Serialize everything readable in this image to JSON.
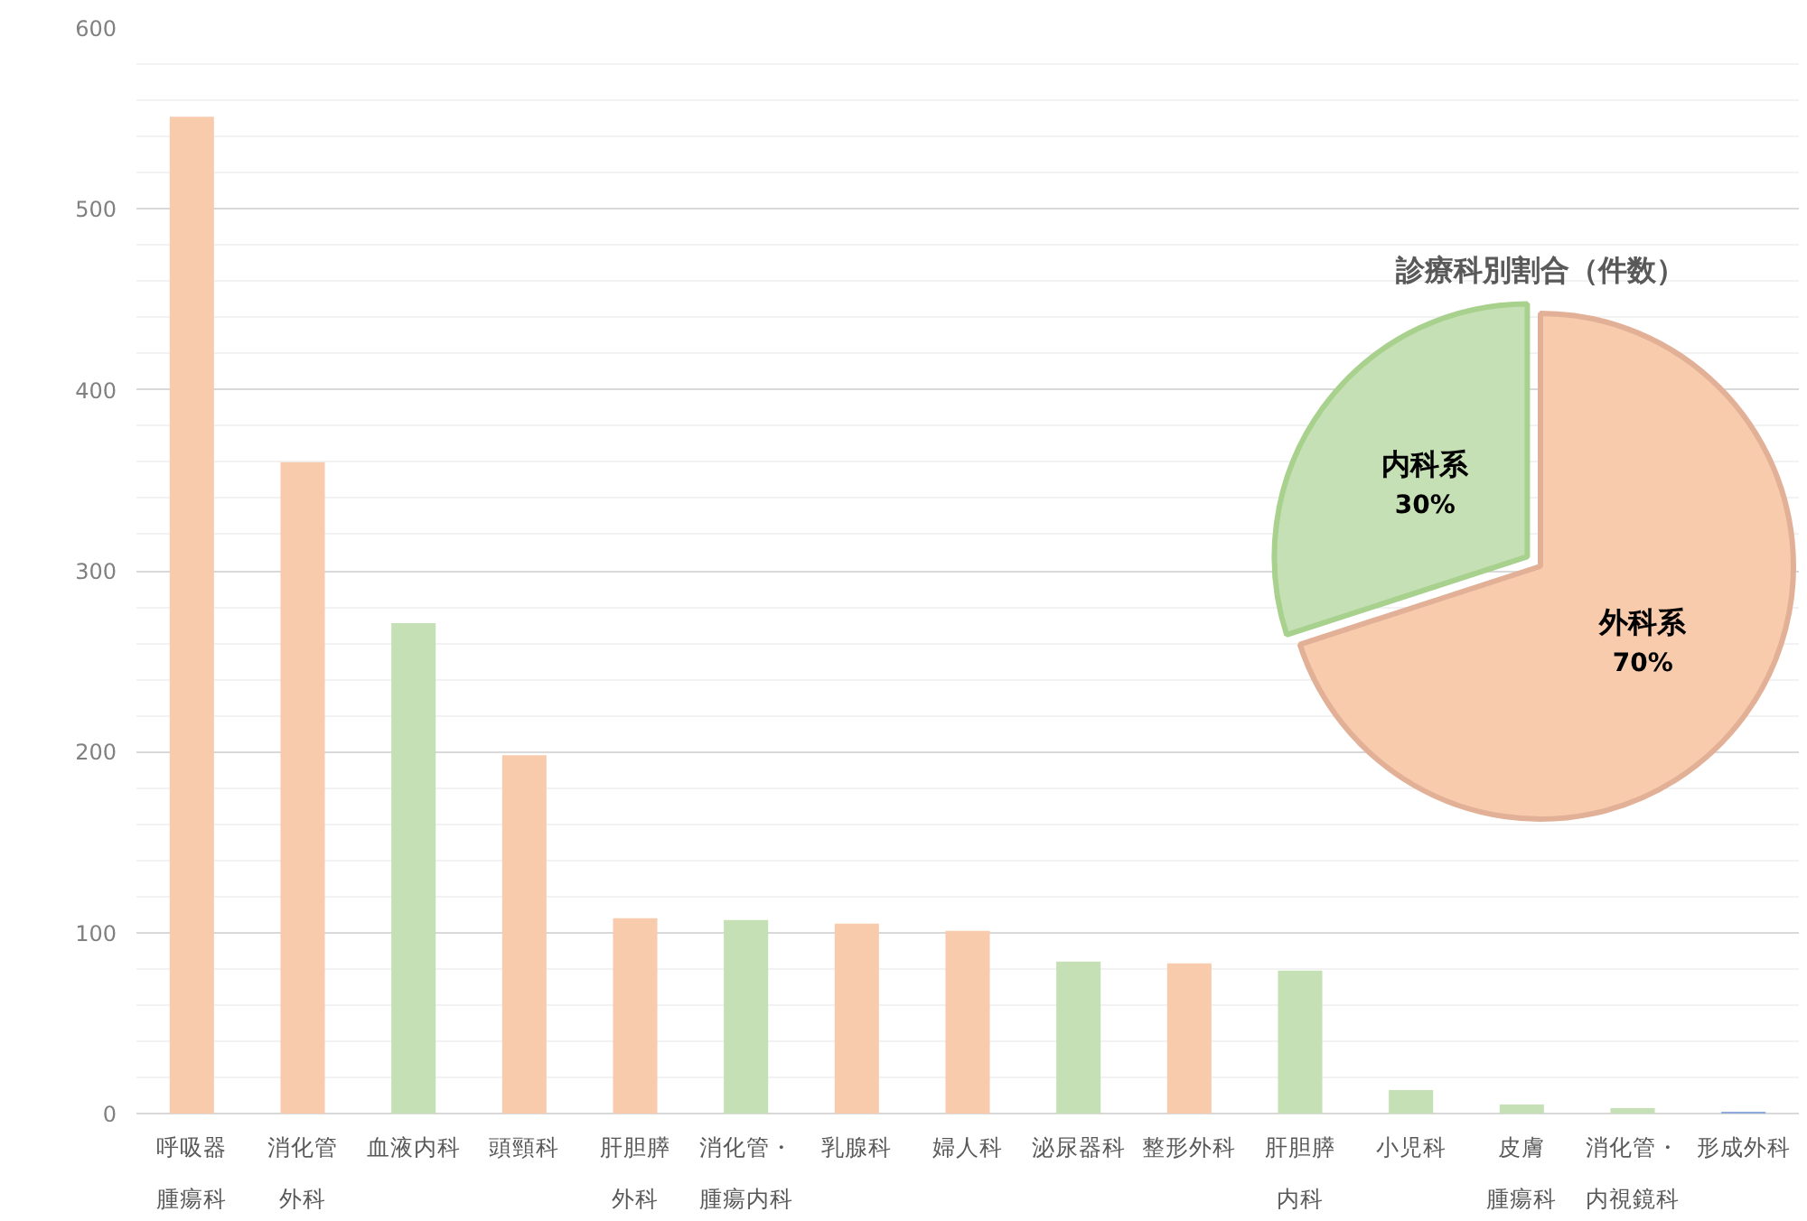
{
  "chart_data": [
    {
      "type": "bar",
      "categories": [
        "呼吸器腫瘍科",
        "消化管外科",
        "血液内科",
        "頭頸科",
        "肝胆膵外科",
        "消化管・腫瘍内科",
        "乳腺科",
        "婦人科",
        "泌尿器科",
        "整形外科",
        "肝胆膵内科",
        "小児科",
        "皮膚腫瘍科",
        "消化管・内視鏡科",
        "形成外科"
      ],
      "values": [
        551,
        360,
        271,
        198,
        108,
        107,
        105,
        101,
        84,
        83,
        79,
        13,
        5,
        3,
        1
      ],
      "colors": [
        "#f8cbad",
        "#f8cbad",
        "#c5e0b4",
        "#f8cbad",
        "#f8cbad",
        "#c5e0b4",
        "#f8cbad",
        "#f8cbad",
        "#c5e0b4",
        "#f8cbad",
        "#c5e0b4",
        "#c5e0b4",
        "#c5e0b4",
        "#c5e0b4",
        "#8faadc"
      ],
      "ylim": [
        0,
        600
      ],
      "yticks": [
        0,
        100,
        200,
        300,
        400,
        500,
        600
      ],
      "grid": "y"
    },
    {
      "type": "pie",
      "title": "診療科別割合（件数）",
      "categories": [
        "外科系",
        "内科系"
      ],
      "values": [
        70,
        30
      ],
      "colors": [
        "#f8cbad",
        "#c5e0b4"
      ],
      "value_labels": [
        "70%",
        "30%"
      ]
    }
  ]
}
